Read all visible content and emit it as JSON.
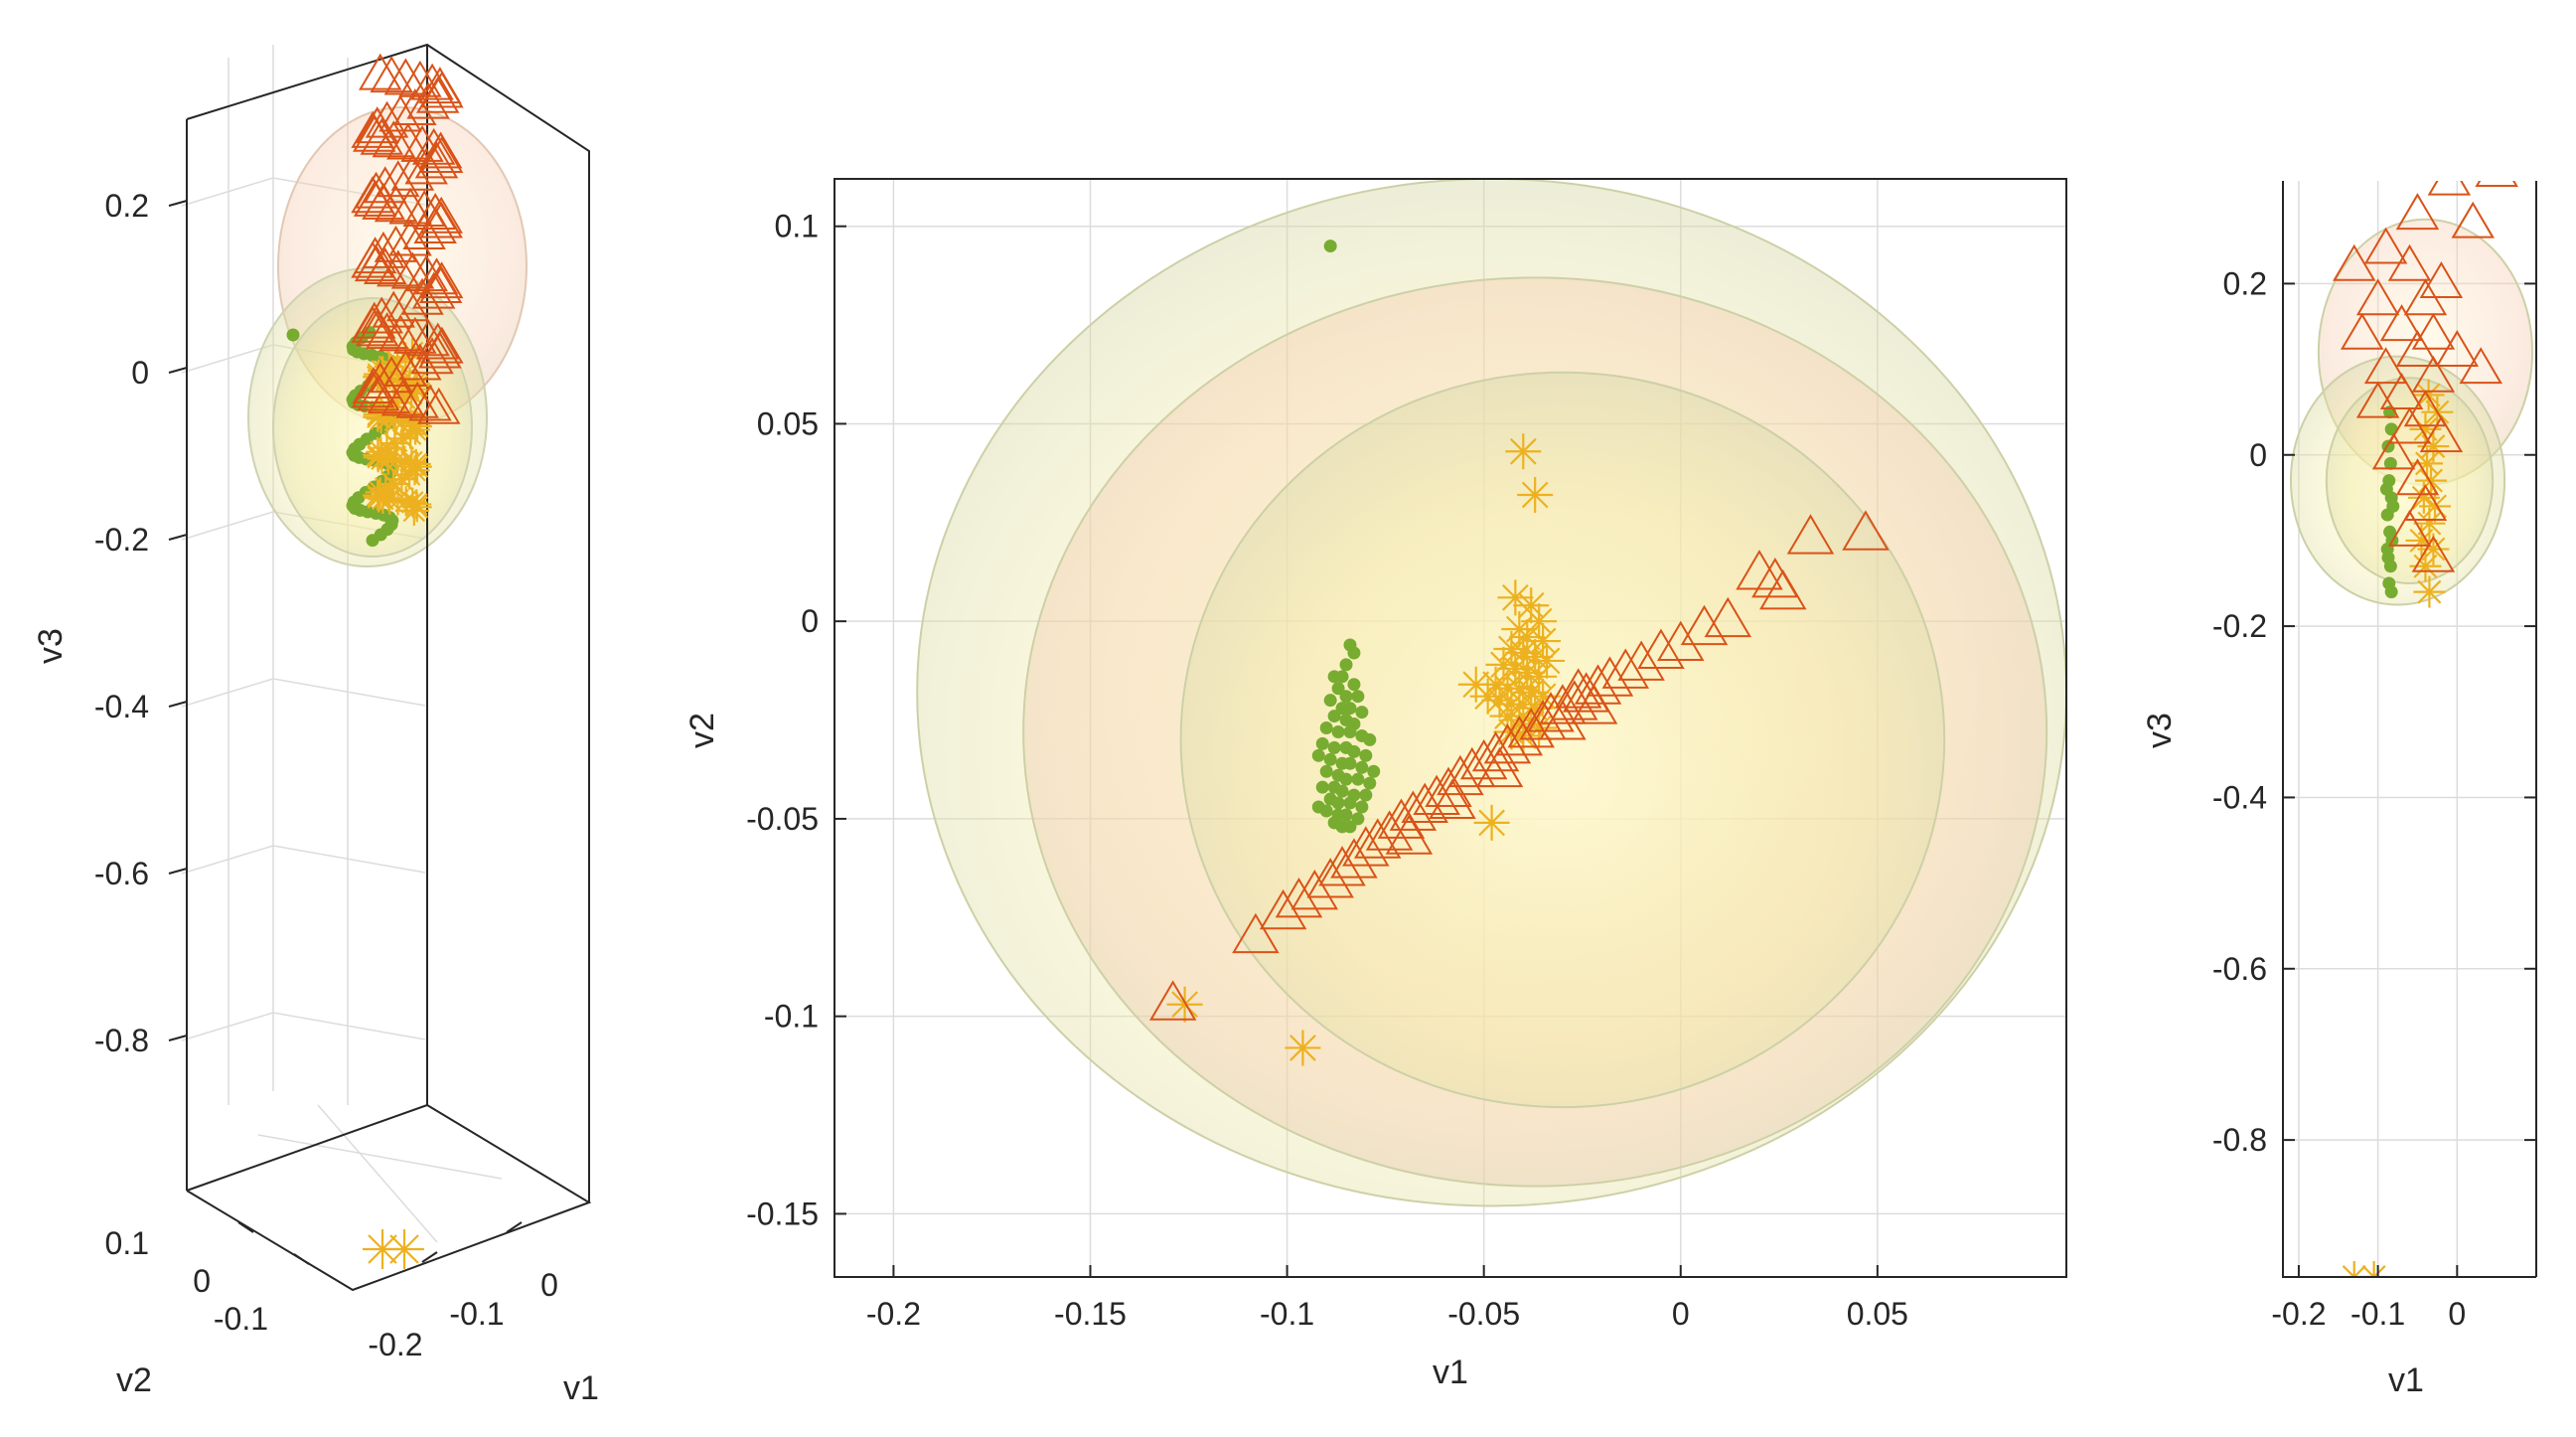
{
  "colors": {
    "green": "#77ac30",
    "yellow": "#edb120",
    "orange": "#d95319",
    "ellipsoid_fill": "#e9e4a0"
  },
  "chart_data": [
    {
      "id": "left",
      "type": "scatter3d",
      "title": "",
      "xlabel": "v1",
      "ylabel": "v2",
      "zlabel": "v3",
      "xlim": [
        -0.2,
        0
      ],
      "ylim": [
        -0.1,
        0.1
      ],
      "zlim": [
        -0.95,
        0.3
      ],
      "z_ticks": [
        0.2,
        0,
        -0.2,
        -0.4,
        -0.6,
        -0.8
      ],
      "z_tick_labels": [
        "0.2",
        "0",
        "-0.2",
        "-0.4",
        "-0.6",
        "-0.8"
      ],
      "v1_ticks": [
        -0.2,
        -0.1,
        0
      ],
      "v1_tick_labels": [
        "-0.2",
        "-0.1",
        "0"
      ],
      "v2_ticks": [
        0.1,
        0,
        -0.1
      ],
      "v2_tick_labels": [
        "0.1",
        "0",
        "-0.1"
      ],
      "series": [
        {
          "name": "green-dots",
          "marker": "dot",
          "v3_range": [
            -0.2,
            0.05
          ],
          "count": 60
        },
        {
          "name": "yellow-stars",
          "marker": "asterisk",
          "v3_range": [
            -0.17,
            0.02
          ],
          "count": 60,
          "outliers_v3": [
            -0.95,
            -0.95
          ]
        },
        {
          "name": "orange-triangles",
          "marker": "triangle",
          "v3_range": [
            -0.05,
            0.36
          ],
          "count": 80
        }
      ]
    },
    {
      "id": "center",
      "type": "scatter",
      "title": "",
      "xlabel": "v1",
      "ylabel": "v2",
      "xlim": [
        -0.215,
        0.098
      ],
      "ylim": [
        -0.166,
        0.112
      ],
      "x_ticks": [
        -0.2,
        -0.15,
        -0.1,
        -0.05,
        0,
        0.05
      ],
      "x_tick_labels": [
        "-0.2",
        "-0.15",
        "-0.1",
        "-0.05",
        "0",
        "0.05"
      ],
      "y_ticks": [
        0.1,
        0.05,
        0,
        -0.05,
        -0.1,
        -0.15
      ],
      "y_tick_labels": [
        "0.1",
        "0.05",
        "0",
        "-0.05",
        "-0.1",
        "-0.15"
      ],
      "ellipsoids": [
        {
          "cx": -0.048,
          "cy": -0.018,
          "rx": 0.146,
          "ry": 0.13
        },
        {
          "cx": -0.037,
          "cy": -0.028,
          "rx": 0.13,
          "ry": 0.115
        },
        {
          "cx": -0.03,
          "cy": -0.03,
          "rx": 0.097,
          "ry": 0.093
        }
      ],
      "series": [
        {
          "name": "green-dots",
          "marker": "dot",
          "points": [
            [
              -0.089,
              0.095
            ],
            [
              -0.084,
              -0.006
            ],
            [
              -0.083,
              -0.008
            ],
            [
              -0.085,
              -0.011
            ],
            [
              -0.086,
              -0.014
            ],
            [
              -0.088,
              -0.014
            ],
            [
              -0.083,
              -0.016
            ],
            [
              -0.087,
              -0.017
            ],
            [
              -0.085,
              -0.019
            ],
            [
              -0.082,
              -0.019
            ],
            [
              -0.089,
              -0.02
            ],
            [
              -0.086,
              -0.022
            ],
            [
              -0.084,
              -0.022
            ],
            [
              -0.081,
              -0.023
            ],
            [
              -0.088,
              -0.024
            ],
            [
              -0.085,
              -0.025
            ],
            [
              -0.083,
              -0.026
            ],
            [
              -0.09,
              -0.027
            ],
            [
              -0.087,
              -0.028
            ],
            [
              -0.084,
              -0.028
            ],
            [
              -0.081,
              -0.029
            ],
            [
              -0.079,
              -0.03
            ],
            [
              -0.091,
              -0.031
            ],
            [
              -0.088,
              -0.032
            ],
            [
              -0.085,
              -0.032
            ],
            [
              -0.083,
              -0.033
            ],
            [
              -0.08,
              -0.034
            ],
            [
              -0.092,
              -0.034
            ],
            [
              -0.089,
              -0.035
            ],
            [
              -0.086,
              -0.036
            ],
            [
              -0.084,
              -0.036
            ],
            [
              -0.081,
              -0.037
            ],
            [
              -0.078,
              -0.038
            ],
            [
              -0.09,
              -0.038
            ],
            [
              -0.087,
              -0.039
            ],
            [
              -0.085,
              -0.04
            ],
            [
              -0.082,
              -0.04
            ],
            [
              -0.079,
              -0.041
            ],
            [
              -0.091,
              -0.042
            ],
            [
              -0.088,
              -0.042
            ],
            [
              -0.086,
              -0.043
            ],
            [
              -0.083,
              -0.044
            ],
            [
              -0.08,
              -0.044
            ],
            [
              -0.089,
              -0.045
            ],
            [
              -0.087,
              -0.046
            ],
            [
              -0.084,
              -0.046
            ],
            [
              -0.081,
              -0.047
            ],
            [
              -0.092,
              -0.047
            ],
            [
              -0.09,
              -0.048
            ],
            [
              -0.087,
              -0.049
            ],
            [
              -0.085,
              -0.049
            ],
            [
              -0.082,
              -0.05
            ],
            [
              -0.088,
              -0.051
            ],
            [
              -0.086,
              -0.052
            ],
            [
              -0.084,
              -0.052
            ]
          ]
        },
        {
          "name": "yellow-stars",
          "marker": "asterisk",
          "points": [
            [
              -0.04,
              0.043
            ],
            [
              -0.037,
              0.032
            ],
            [
              -0.126,
              -0.097
            ],
            [
              -0.096,
              -0.108
            ],
            [
              -0.048,
              -0.051
            ],
            [
              -0.042,
              0.006
            ],
            [
              -0.038,
              0.004
            ],
            [
              -0.036,
              0.0
            ],
            [
              -0.041,
              -0.002
            ],
            [
              -0.039,
              -0.004
            ],
            [
              -0.035,
              -0.005
            ],
            [
              -0.043,
              -0.007
            ],
            [
              -0.04,
              -0.008
            ],
            [
              -0.037,
              -0.009
            ],
            [
              -0.034,
              -0.01
            ],
            [
              -0.045,
              -0.011
            ],
            [
              -0.042,
              -0.012
            ],
            [
              -0.039,
              -0.013
            ],
            [
              -0.036,
              -0.014
            ],
            [
              -0.052,
              -0.016
            ],
            [
              -0.047,
              -0.016
            ],
            [
              -0.044,
              -0.017
            ],
            [
              -0.041,
              -0.017
            ],
            [
              -0.038,
              -0.018
            ],
            [
              -0.035,
              -0.019
            ],
            [
              -0.049,
              -0.019
            ],
            [
              -0.046,
              -0.02
            ],
            [
              -0.043,
              -0.021
            ],
            [
              -0.04,
              -0.021
            ],
            [
              -0.037,
              -0.022
            ],
            [
              -0.044,
              -0.024
            ],
            [
              -0.041,
              -0.025
            ],
            [
              -0.038,
              -0.026
            ],
            [
              -0.036,
              -0.027
            ],
            [
              -0.043,
              -0.028
            ],
            [
              -0.04,
              -0.029
            ]
          ]
        },
        {
          "name": "orange-triangles",
          "marker": "triangle",
          "points": [
            [
              0.047,
              0.022
            ],
            [
              0.033,
              0.021
            ],
            [
              0.02,
              0.012
            ],
            [
              0.024,
              0.01
            ],
            [
              0.026,
              0.007
            ],
            [
              0.012,
              0.0
            ],
            [
              0.006,
              -0.002
            ],
            [
              0.0,
              -0.006
            ],
            [
              -0.005,
              -0.008
            ],
            [
              -0.01,
              -0.011
            ],
            [
              -0.014,
              -0.013
            ],
            [
              -0.018,
              -0.015
            ],
            [
              -0.021,
              -0.017
            ],
            [
              -0.024,
              -0.019
            ],
            [
              -0.027,
              -0.021
            ],
            [
              -0.03,
              -0.022
            ],
            [
              -0.033,
              -0.024
            ],
            [
              -0.035,
              -0.026
            ],
            [
              -0.038,
              -0.028
            ],
            [
              -0.041,
              -0.03
            ],
            [
              -0.044,
              -0.032
            ],
            [
              -0.047,
              -0.034
            ],
            [
              -0.05,
              -0.036
            ],
            [
              -0.053,
              -0.038
            ],
            [
              -0.056,
              -0.04
            ],
            [
              -0.059,
              -0.043
            ],
            [
              -0.062,
              -0.045
            ],
            [
              -0.065,
              -0.047
            ],
            [
              -0.068,
              -0.049
            ],
            [
              -0.071,
              -0.051
            ],
            [
              -0.074,
              -0.054
            ],
            [
              -0.077,
              -0.056
            ],
            [
              -0.08,
              -0.058
            ],
            [
              -0.083,
              -0.061
            ],
            [
              -0.086,
              -0.063
            ],
            [
              -0.089,
              -0.066
            ],
            [
              -0.093,
              -0.069
            ],
            [
              -0.097,
              -0.071
            ],
            [
              -0.101,
              -0.074
            ],
            [
              -0.108,
              -0.08
            ],
            [
              -0.129,
              -0.097
            ],
            [
              -0.03,
              -0.026
            ],
            [
              -0.026,
              -0.018
            ],
            [
              -0.022,
              -0.022
            ],
            [
              -0.046,
              -0.038
            ],
            [
              -0.058,
              -0.046
            ],
            [
              -0.069,
              -0.055
            ]
          ]
        }
      ]
    },
    {
      "id": "right",
      "type": "scatter",
      "title": "",
      "xlabel": "v1",
      "ylabel": "v3",
      "xlim": [
        -0.22,
        0.1
      ],
      "ylim": [
        -0.96,
        0.32
      ],
      "x_ticks": [
        -0.2,
        -0.1,
        0
      ],
      "x_tick_labels": [
        "-0.2",
        "-0.1",
        "0"
      ],
      "y_ticks": [
        0.2,
        0,
        -0.2,
        -0.4,
        -0.6,
        -0.8
      ],
      "y_tick_labels": [
        "0.2",
        "0",
        "-0.2",
        "-0.4",
        "-0.6",
        "-0.8"
      ],
      "ellipsoids": [
        {
          "cx": -0.04,
          "cy": 0.12,
          "rx": 0.135,
          "ry": 0.155
        },
        {
          "cx": -0.075,
          "cy": -0.03,
          "rx": 0.135,
          "ry": 0.145
        },
        {
          "cx": -0.06,
          "cy": -0.03,
          "rx": 0.105,
          "ry": 0.12
        }
      ],
      "series": [
        {
          "name": "green-dots",
          "marker": "dot",
          "points": [
            [
              -0.085,
              0.05
            ],
            [
              -0.083,
              0.03
            ],
            [
              -0.087,
              0.01
            ],
            [
              -0.084,
              -0.01
            ],
            [
              -0.086,
              -0.03
            ],
            [
              -0.083,
              -0.05
            ],
            [
              -0.088,
              -0.07
            ],
            [
              -0.085,
              -0.09
            ],
            [
              -0.082,
              -0.1
            ],
            [
              -0.087,
              -0.12
            ],
            [
              -0.084,
              -0.13
            ],
            [
              -0.086,
              -0.15
            ],
            [
              -0.083,
              -0.16
            ],
            [
              -0.089,
              -0.04
            ],
            [
              -0.081,
              -0.06
            ],
            [
              -0.088,
              -0.11
            ]
          ]
        },
        {
          "name": "yellow-stars",
          "marker": "asterisk",
          "points": [
            [
              -0.13,
              -0.96
            ],
            [
              -0.105,
              -0.96
            ],
            [
              -0.035,
              -0.16
            ],
            [
              -0.04,
              -0.13
            ],
            [
              -0.03,
              -0.11
            ],
            [
              -0.045,
              -0.1
            ],
            [
              -0.035,
              -0.08
            ],
            [
              -0.028,
              -0.06
            ],
            [
              -0.042,
              -0.05
            ],
            [
              -0.033,
              -0.03
            ],
            [
              -0.038,
              -0.01
            ],
            [
              -0.03,
              0.01
            ],
            [
              -0.04,
              0.03
            ],
            [
              -0.025,
              0.05
            ],
            [
              -0.036,
              0.07
            ]
          ]
        },
        {
          "name": "orange-triangles",
          "marker": "triangle",
          "points": [
            [
              0.05,
              0.33
            ],
            [
              -0.01,
              0.32
            ],
            [
              -0.05,
              0.28
            ],
            [
              0.02,
              0.27
            ],
            [
              -0.09,
              0.24
            ],
            [
              -0.13,
              0.22
            ],
            [
              -0.06,
              0.22
            ],
            [
              -0.02,
              0.2
            ],
            [
              -0.04,
              0.18
            ],
            [
              -0.1,
              0.18
            ],
            [
              -0.07,
              0.15
            ],
            [
              -0.03,
              0.14
            ],
            [
              -0.12,
              0.14
            ],
            [
              0.0,
              0.12
            ],
            [
              -0.05,
              0.12
            ],
            [
              -0.09,
              0.1
            ],
            [
              -0.03,
              0.09
            ],
            [
              0.03,
              0.1
            ],
            [
              -0.07,
              0.07
            ],
            [
              -0.1,
              0.06
            ],
            [
              -0.04,
              0.05
            ],
            [
              -0.06,
              0.03
            ],
            [
              -0.02,
              0.02
            ],
            [
              -0.08,
              0.0
            ],
            [
              -0.05,
              -0.03
            ],
            [
              -0.04,
              -0.06
            ],
            [
              -0.06,
              -0.09
            ],
            [
              -0.03,
              -0.12
            ]
          ]
        }
      ]
    }
  ]
}
